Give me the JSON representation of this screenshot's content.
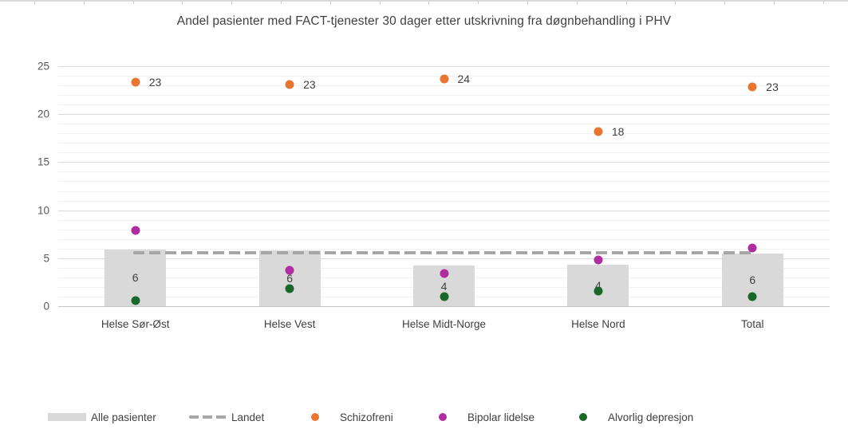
{
  "title": "Andel pasienter med FACT-tjenester 30 dager etter utskrivning fra døgnbehandling i PHV",
  "colors": {
    "bar": "#d9d9d9",
    "landet": "#a6a6a6",
    "schizofreni": "#e87631",
    "bipolar": "#af2ca1",
    "depresjon": "#1a6829",
    "text": "#404040",
    "axis_text": "#595959"
  },
  "legend": {
    "items": [
      {
        "label": "Alle pasienter",
        "marker": "bar-swatch",
        "color": "#d9d9d9"
      },
      {
        "label": "Landet",
        "marker": "dashed-line-swatch",
        "color": "#a6a6a6"
      },
      {
        "label": "Schizofreni",
        "marker": "dot-swatch",
        "color": "#e87631"
      },
      {
        "label": "Bipolar lidelse",
        "marker": "dot-swatch",
        "color": "#af2ca1"
      },
      {
        "label": "Alvorlig depresjon",
        "marker": "dot-swatch",
        "color": "#1a6829"
      }
    ]
  },
  "chart_data": {
    "type": "combo (bar + dashed reference line + scatter)",
    "categories": [
      "Helse Sør-Øst",
      "Helse Vest",
      "Helse Midt-Norge",
      "Helse Nord",
      "Total"
    ],
    "series": [
      {
        "name": "Alle pasienter",
        "type": "bar",
        "color": "#d9d9d9",
        "values": [
          5.9,
          5.8,
          4.2,
          4.3,
          5.5
        ],
        "labels": [
          "6",
          "6",
          "4",
          "4",
          "6"
        ]
      },
      {
        "name": "Landet",
        "type": "dashed-line",
        "color": "#a6a6a6",
        "value": 5.6
      },
      {
        "name": "Schizofreni",
        "type": "scatter",
        "color": "#e87631",
        "values": [
          23.3,
          23.1,
          23.7,
          18.2,
          22.8
        ],
        "labels": [
          "23",
          "23",
          "24",
          "18",
          "23"
        ]
      },
      {
        "name": "Bipolar lidelse",
        "type": "scatter",
        "color": "#af2ca1",
        "values": [
          7.9,
          3.7,
          3.4,
          4.8,
          6.1
        ],
        "labels": [
          null,
          null,
          null,
          null,
          null
        ]
      },
      {
        "name": "Alvorlig depresjon",
        "type": "scatter",
        "color": "#1a6829",
        "values": [
          0.6,
          1.8,
          1.0,
          1.6,
          1.0
        ],
        "labels": [
          null,
          null,
          null,
          null,
          null
        ]
      }
    ],
    "ylim": [
      0,
      25
    ],
    "y_ticks": [
      0,
      5,
      10,
      15,
      20,
      25
    ],
    "minor_grid_step": 1,
    "grid": "on",
    "legend_position": "bottom"
  }
}
